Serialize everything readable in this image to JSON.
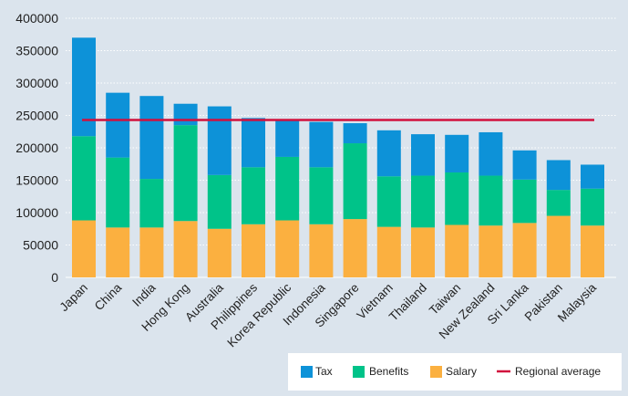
{
  "chart_data": {
    "type": "bar",
    "stacked": true,
    "title": "",
    "xlabel": "",
    "ylabel": "",
    "ylim": [
      0,
      400000
    ],
    "yticks": [
      0,
      50000,
      100000,
      150000,
      200000,
      250000,
      300000,
      350000,
      400000
    ],
    "grid": true,
    "legend_position": "bottom-right",
    "categories": [
      "Japan",
      "China",
      "India",
      "Hong Kong",
      "Australia",
      "Philippines",
      "Korea Republic",
      "Indonesia",
      "Singapore",
      "Vietnam",
      "Thailand",
      "Taiwan",
      "New Zealand",
      "Sri Lanka",
      "Pakistan",
      "Malaysia"
    ],
    "series": [
      {
        "name": "Salary",
        "color": "#fbb040",
        "values": [
          88000,
          77000,
          77000,
          87000,
          75000,
          82000,
          88000,
          82000,
          90000,
          78000,
          77000,
          81000,
          80000,
          84000,
          95000,
          80000
        ]
      },
      {
        "name": "Benefits",
        "color": "#00c389",
        "values": [
          130000,
          108000,
          75000,
          148000,
          83000,
          88000,
          98000,
          88000,
          117000,
          78000,
          80000,
          81000,
          77000,
          67000,
          40000,
          57000
        ]
      },
      {
        "name": "Tax",
        "color": "#0d92d8",
        "values": [
          152000,
          100000,
          128000,
          33000,
          106000,
          76000,
          57000,
          70000,
          31000,
          71000,
          64000,
          58000,
          67000,
          45000,
          46000,
          37000
        ]
      }
    ],
    "regional_average": {
      "name": "Regional average",
      "value": 243000,
      "color": "#d1103d"
    },
    "legend": [
      {
        "label": "Tax",
        "color": "#0d92d8",
        "kind": "box"
      },
      {
        "label": "Benefits",
        "color": "#00c389",
        "kind": "box"
      },
      {
        "label": "Salary",
        "color": "#fbb040",
        "kind": "box"
      },
      {
        "label": "Regional average",
        "color": "#d1103d",
        "kind": "line"
      }
    ],
    "y_tick_labels": [
      "0",
      "50000",
      "100000",
      "150000",
      "200000",
      "250000",
      "300000",
      "350000",
      "400000"
    ]
  }
}
